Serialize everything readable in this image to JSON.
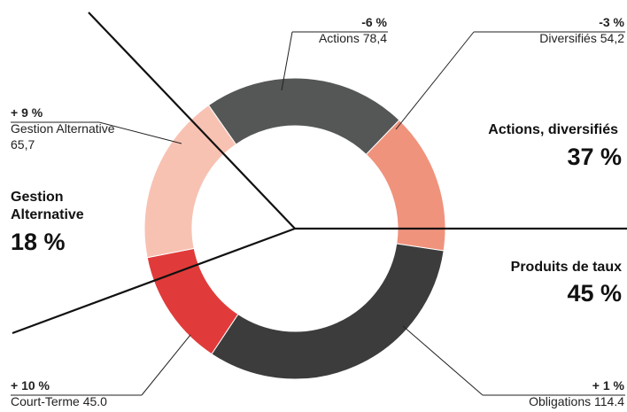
{
  "chart_data": {
    "type": "pie",
    "donut": true,
    "categories": [
      "Actions",
      "Diversifiés",
      "Obligations",
      "Court-Terme",
      "Gestion Alternative"
    ],
    "values": [
      78.4,
      54.2,
      114.4,
      45.0,
      65.7
    ],
    "value_labels": [
      "78,4",
      "54,2",
      "114.4",
      "45.0",
      "65,7"
    ],
    "changes": [
      "-6 %",
      "-3 %",
      "+ 1 %",
      "+ 10 %",
      "+ 9 %"
    ],
    "colors": [
      "#545756",
      "#f0937c",
      "#3c3c3c",
      "#e03b3a",
      "#f8c2b3"
    ],
    "groups": [
      {
        "name": "Actions, diversifiés",
        "share": "37 %"
      },
      {
        "name": "Produits de taux",
        "share": "45 %"
      },
      {
        "name": "Gestion Alternative",
        "share": "18 %"
      }
    ]
  }
}
